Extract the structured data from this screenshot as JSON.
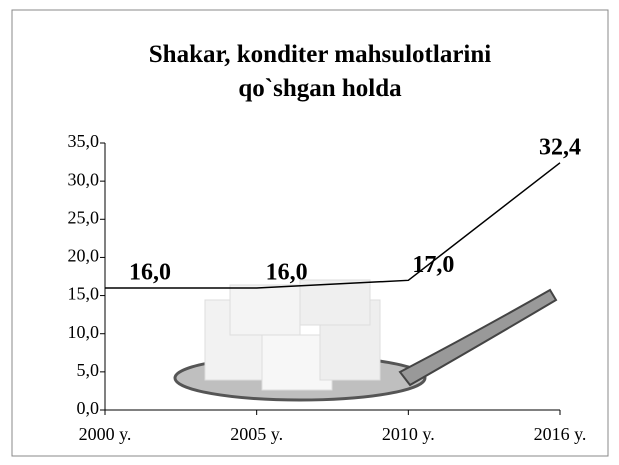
{
  "chart_data": {
    "type": "line",
    "title": "Shakar, konditer mahsulotlarini qo`shgan holda",
    "categories": [
      "2000 y.",
      "2005 y.",
      "2010 y.",
      "2016 y."
    ],
    "values": [
      16.0,
      16.0,
      17.0,
      32.4
    ],
    "value_labels": [
      "16,0",
      "16,0",
      "17,0",
      "32,4"
    ],
    "color": "#000000",
    "ylim": [
      0,
      35
    ],
    "yticks": [
      {
        "value": 0,
        "label": "0,0"
      },
      {
        "value": 5,
        "label": "5,0"
      },
      {
        "value": 10,
        "label": "10,0"
      },
      {
        "value": 15,
        "label": "15,0"
      },
      {
        "value": 20,
        "label": "20,0"
      },
      {
        "value": 25,
        "label": "25,0"
      },
      {
        "value": 30,
        "label": "30,0"
      },
      {
        "value": 35,
        "label": "35,0"
      }
    ],
    "grid": false
  }
}
